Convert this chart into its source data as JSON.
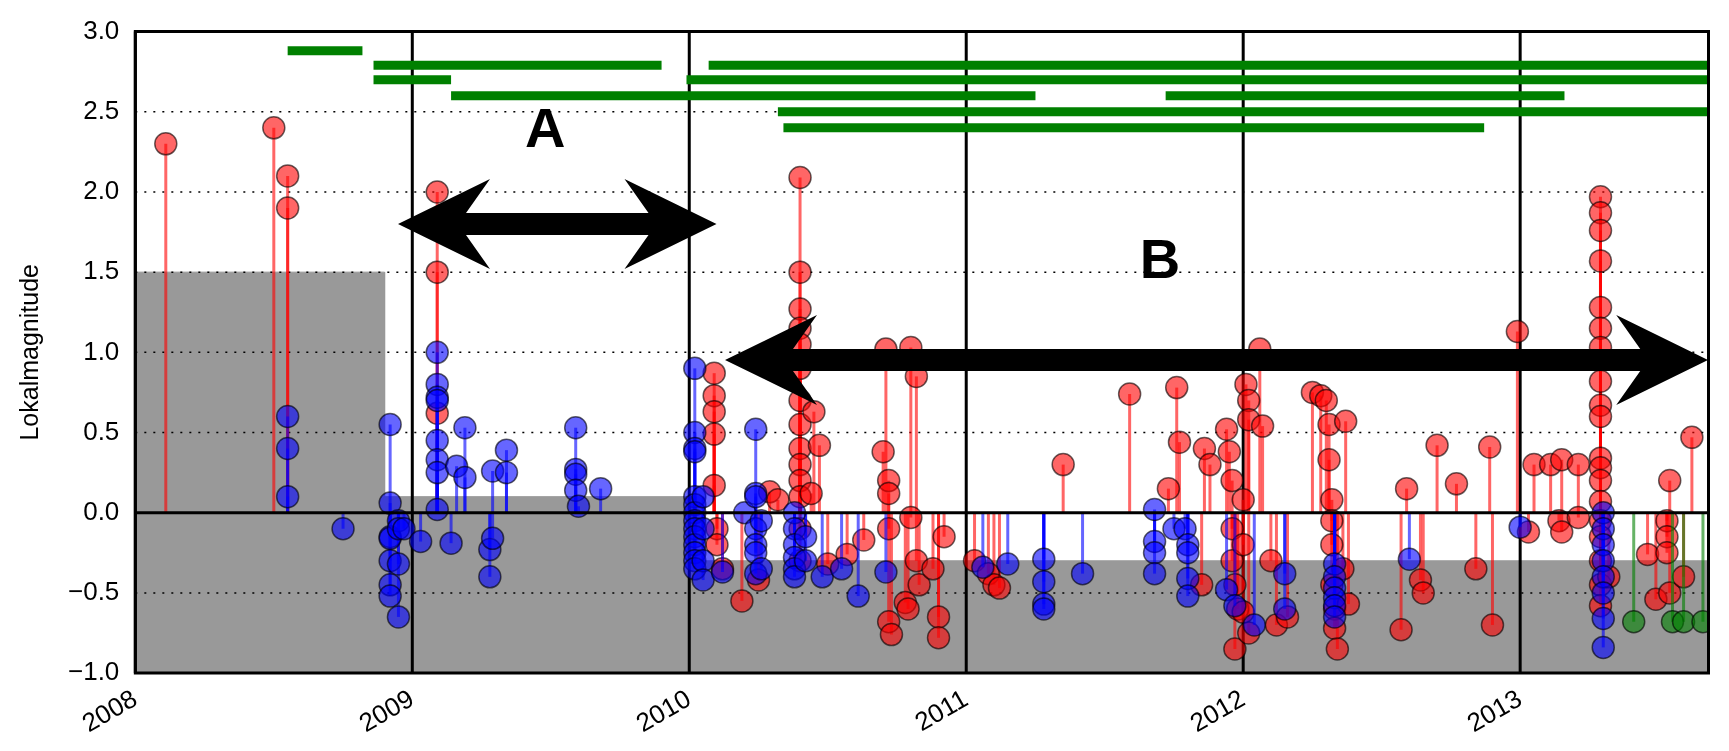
{
  "chart_data": {
    "type": "lollipop",
    "ylabel": "Lokalmagnitude",
    "xlim": [
      2008,
      2013.68
    ],
    "xticks": [
      2008,
      2009,
      2010,
      2011,
      2012,
      2013
    ],
    "ylim": [
      -1,
      3
    ],
    "yticks": [
      {
        "value": -1,
        "label": "−1.0"
      },
      {
        "value": -0.5,
        "label": "−0.5"
      },
      {
        "value": 0,
        "label": "0.0"
      },
      {
        "value": 0.5,
        "label": "0.5"
      },
      {
        "value": 1,
        "label": "1.0"
      },
      {
        "value": 1.5,
        "label": "1.5"
      },
      {
        "value": 2,
        "label": "2.0"
      },
      {
        "value": 2.5,
        "label": "2.5"
      },
      {
        "value": 3,
        "label": "3.0"
      }
    ],
    "grid": true,
    "annotations": [
      "A",
      "B"
    ],
    "series": [
      {
        "type": "area",
        "color": "#999999",
        "x": [
          2008,
          2008,
          2008.9,
          2008.9,
          2010.02,
          2010.02,
          2013.68,
          2013.68
        ],
        "values": [
          -1,
          1.5,
          1.5,
          0.1,
          0.1,
          -0.3,
          -0.3,
          -1
        ]
      },
      {
        "type": "line",
        "color": "#008000",
        "x": [
          2008.55,
          2008.82
        ],
        "values": [
          2.88,
          2.88
        ]
      },
      {
        "type": "line",
        "color": "#008000",
        "x": [
          2008.86,
          2009.9
        ],
        "values": [
          2.79,
          2.79
        ]
      },
      {
        "type": "line",
        "color": "#008000",
        "x": [
          2010.07,
          2013.68
        ],
        "values": [
          2.79,
          2.79
        ]
      },
      {
        "type": "line",
        "color": "#008000",
        "x": [
          2008.86,
          2009.14
        ],
        "values": [
          2.7,
          2.7
        ]
      },
      {
        "type": "line",
        "color": "#008000",
        "x": [
          2009.99,
          2013.68
        ],
        "values": [
          2.7,
          2.7
        ]
      },
      {
        "type": "line",
        "color": "#008000",
        "x": [
          2009.14,
          2011.25
        ],
        "values": [
          2.6,
          2.6
        ]
      },
      {
        "type": "line",
        "color": "#008000",
        "x": [
          2011.72,
          2013.16
        ],
        "values": [
          2.6,
          2.6
        ]
      },
      {
        "type": "line",
        "color": "#008000",
        "x": [
          2010.32,
          2013.68
        ],
        "values": [
          2.5,
          2.5
        ]
      },
      {
        "type": "line",
        "color": "#008000",
        "x": [
          2010.34,
          2012.87
        ],
        "values": [
          2.4,
          2.4
        ]
      },
      {
        "marker": "circle",
        "color": "#ff0000",
        "x": [
          2008.11,
          2008.5,
          2008.55,
          2008.55,
          2009.09,
          2009.09,
          2009.09,
          2010.09,
          2010.09,
          2010.09,
          2010.09,
          2010.09,
          2010.1,
          2010.1,
          2010.12,
          2010.19,
          2010.25,
          2010.29,
          2010.32,
          2010.4,
          2010.4,
          2010.4,
          2010.4,
          2010.4,
          2010.4,
          2010.4,
          2010.4,
          2010.4,
          2010.4,
          2010.4,
          2010.4,
          2010.4,
          2010.4,
          2010.44,
          2010.45,
          2010.47,
          2010.5,
          2010.57,
          2010.63,
          2010.7,
          2010.71,
          2010.72,
          2010.72,
          2010.72,
          2010.72,
          2010.73,
          2010.78,
          2010.79,
          2010.8,
          2010.8,
          2010.82,
          2010.82,
          2010.83,
          2010.88,
          2010.9,
          2010.9,
          2010.92,
          2011.03,
          2011.08,
          2011.1,
          2011.12,
          2011.35,
          2011.59,
          2011.73,
          2011.76,
          2011.77,
          2011.86,
          2011.88,
          2011.85,
          2011.94,
          2011.95,
          2011.96,
          2011.96,
          2011.96,
          2011.97,
          2011.98,
          2011.97,
          2012,
          2012,
          2012,
          2012.01,
          2012.02,
          2012.02,
          2012.02,
          2012.06,
          2012.07,
          2012.1,
          2012.12,
          2012.16,
          2012.25,
          2012.28,
          2012.3,
          2012.31,
          2012.31,
          2012.32,
          2012.32,
          2012.32,
          2012.32,
          2012.33,
          2012.33,
          2012.34,
          2012.36,
          2012.37,
          2012.38,
          2012.57,
          2012.59,
          2012.64,
          2012.65,
          2012.7,
          2012.77,
          2012.84,
          2012.89,
          2012.9,
          2012.99,
          2013.03,
          2013.05,
          2013.11,
          2013.14,
          2013.15,
          2013.15,
          2013.21,
          2013.21,
          2013.29,
          2013.29,
          2013.29,
          2013.29,
          2013.29,
          2013.29,
          2013.29,
          2013.29,
          2013.29,
          2013.29,
          2013.29,
          2013.29,
          2013.29,
          2013.29,
          2013.29,
          2013.29,
          2013.29,
          2013.29,
          2013.29,
          2013.32,
          2013.46,
          2013.49,
          2013.53,
          2013.53,
          2013.53,
          2013.54,
          2013.54,
          2013.59,
          2013.62
        ],
        "values": [
          2.3,
          2.4,
          2.1,
          1.9,
          2.0,
          1.5,
          0.62,
          0.87,
          0.73,
          0.63,
          0.49,
          0.17,
          -0.1,
          -0.2,
          -0.35,
          -0.55,
          -0.42,
          0.13,
          0.08,
          2.09,
          1.5,
          1.27,
          1.15,
          1.05,
          0.9,
          0.7,
          0.55,
          0.4,
          0.3,
          0.2,
          0.1,
          -0.1,
          -0.3,
          0.12,
          0.63,
          0.42,
          -0.32,
          -0.26,
          -0.17,
          0.38,
          1.02,
          0.2,
          0.12,
          -0.1,
          -0.68,
          -0.76,
          -0.56,
          -0.6,
          1.03,
          -0.03,
          0.85,
          -0.3,
          -0.45,
          -0.35,
          -0.65,
          -0.78,
          -0.15,
          -0.3,
          -0.38,
          -0.45,
          -0.47,
          0.3,
          0.74,
          0.15,
          0.78,
          0.44,
          0.4,
          0.3,
          -0.45,
          0.52,
          0.38,
          0.2,
          -0.1,
          -0.3,
          -0.45,
          -0.6,
          -0.85,
          0.08,
          -0.2,
          -0.62,
          0.8,
          0.7,
          0.58,
          -0.75,
          1.02,
          0.54,
          -0.3,
          -0.7,
          -0.65,
          0.75,
          0.73,
          0.7,
          0.55,
          0.33,
          0.08,
          -0.05,
          -0.2,
          -0.45,
          -0.6,
          -0.72,
          -0.85,
          -0.35,
          0.57,
          -0.57,
          -0.73,
          0.15,
          -0.42,
          -0.5,
          0.42,
          0.18,
          -0.35,
          0.41,
          -0.7,
          1.13,
          -0.12,
          0.3,
          0.3,
          -0.05,
          0.33,
          -0.12,
          0.3,
          -0.03,
          1.97,
          1.87,
          1.76,
          1.57,
          1.28,
          1.15,
          1.03,
          0.82,
          0.67,
          0.6,
          0.34,
          0.28,
          0.2,
          0.07,
          -0.05,
          -0.15,
          -0.3,
          -0.45,
          -0.58,
          -0.4,
          -0.26,
          -0.54,
          -0.05,
          -0.15,
          -0.25,
          0.2,
          -0.5,
          -0.4,
          0.47
        ]
      },
      {
        "marker": "circle",
        "color": "#0000ff",
        "x": [
          2008.55,
          2008.55,
          2008.55,
          2008.75,
          2008.92,
          2008.92,
          2008.92,
          2008.92,
          2008.92,
          2008.92,
          2008.92,
          2008.95,
          2008.95,
          2008.95,
          2008.95,
          2008.97,
          2009.03,
          2009.09,
          2009.09,
          2009.09,
          2009.09,
          2009.09,
          2009.09,
          2009.09,
          2009.09,
          2009.14,
          2009.16,
          2009.19,
          2009.19,
          2009.28,
          2009.28,
          2009.29,
          2009.29,
          2009.34,
          2009.34,
          2009.59,
          2009.59,
          2009.59,
          2009.59,
          2009.6,
          2009.68,
          2010.02,
          2010.02,
          2010.02,
          2010.02,
          2010.02,
          2010.02,
          2010.02,
          2010.02,
          2010.02,
          2010.02,
          2010.02,
          2010.02,
          2010.02,
          2010.02,
          2010.05,
          2010.05,
          2010.05,
          2010.05,
          2010.12,
          2010.2,
          2010.24,
          2010.24,
          2010.24,
          2010.24,
          2010.24,
          2010.24,
          2010.24,
          2010.26,
          2010.26,
          2010.38,
          2010.38,
          2010.38,
          2010.38,
          2010.38,
          2010.38,
          2010.42,
          2010.42,
          2010.48,
          2010.55,
          2010.61,
          2010.71,
          2011.06,
          2011.15,
          2011.28,
          2011.28,
          2011.28,
          2011.28,
          2011.42,
          2011.68,
          2011.68,
          2011.68,
          2011.68,
          2011.75,
          2011.79,
          2011.8,
          2011.8,
          2011.8,
          2011.8,
          2011.94,
          2011.97,
          2012.04,
          2012.15,
          2012.15,
          2012.33,
          2012.33,
          2012.33,
          2012.33,
          2012.33,
          2012.33,
          2012.6,
          2013,
          2013.3,
          2013.3,
          2013.3,
          2013.3,
          2013.3,
          2013.3,
          2013.3,
          2013.3
        ],
        "values": [
          0.6,
          0.4,
          0.1,
          -0.1,
          0.55,
          0.06,
          -0.15,
          -0.16,
          -0.3,
          -0.45,
          -0.52,
          -0.05,
          -0.1,
          -0.32,
          -0.65,
          -0.1,
          -0.18,
          1.0,
          0.8,
          0.72,
          0.7,
          0.45,
          0.33,
          0.25,
          0.02,
          -0.19,
          0.29,
          0.53,
          0.22,
          -0.23,
          -0.4,
          0.26,
          -0.16,
          0.39,
          0.25,
          0.53,
          0.27,
          0.24,
          0.14,
          0.04,
          0.15,
          0.9,
          0.5,
          0.4,
          0.38,
          0.1,
          0.05,
          0.0,
          -0.05,
          -0.1,
          -0.15,
          -0.2,
          -0.25,
          -0.3,
          -0.35,
          0.1,
          -0.1,
          -0.3,
          -0.42,
          -0.37,
          0.0,
          0.52,
          0.12,
          0.1,
          -0.1,
          -0.2,
          -0.25,
          -0.38,
          -0.05,
          -0.35,
          0.0,
          -0.1,
          -0.2,
          -0.28,
          -0.35,
          -0.4,
          -0.15,
          -0.3,
          -0.4,
          -0.35,
          -0.52,
          -0.37,
          -0.34,
          -0.32,
          -0.29,
          -0.43,
          -0.57,
          -0.6,
          -0.38,
          0.02,
          -0.18,
          -0.25,
          -0.38,
          -0.1,
          -0.1,
          -0.2,
          -0.25,
          -0.41,
          -0.52,
          -0.48,
          -0.58,
          -0.7,
          -0.38,
          -0.6,
          -0.32,
          -0.4,
          -0.47,
          -0.53,
          -0.58,
          -0.65,
          -0.29,
          -0.09,
          0.0,
          -0.1,
          -0.2,
          -0.3,
          -0.4,
          -0.5,
          -0.66,
          -0.84
        ]
      },
      {
        "marker": "circle",
        "color": "#008000",
        "x": [
          2013.41,
          2013.53,
          2013.55,
          2013.59,
          2013.66
        ],
        "values": [
          -0.68,
          null,
          -0.68,
          -0.68,
          -0.68
        ]
      }
    ]
  }
}
